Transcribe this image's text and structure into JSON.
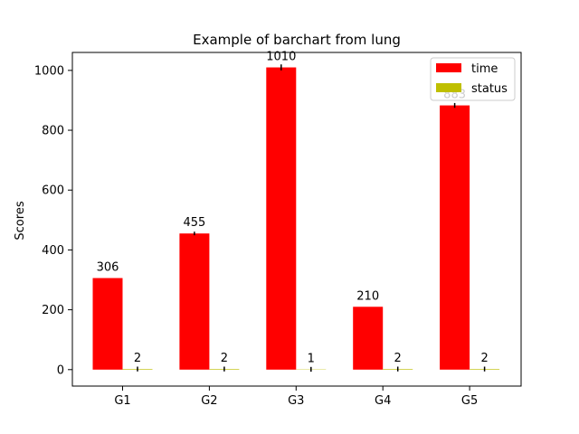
{
  "chart_data": {
    "type": "bar",
    "title": "Example of barchart from lung",
    "xlabel": "",
    "ylabel": "Scores",
    "categories": [
      "G1",
      "G2",
      "G3",
      "G4",
      "G5"
    ],
    "series": [
      {
        "name": "time",
        "values": [
          306,
          455,
          1010,
          210,
          883
        ],
        "errors": [
          0,
          6,
          10,
          0,
          8
        ],
        "labels": [
          "306",
          "455",
          "1010",
          "210",
          "883"
        ],
        "color": "#ff0000"
      },
      {
        "name": "status",
        "values": [
          2,
          2,
          1,
          2,
          2
        ],
        "errors": [
          8,
          8,
          8,
          8,
          8
        ],
        "labels": [
          "2",
          "2",
          "1",
          "2",
          "2"
        ],
        "color": "#bfbf00"
      }
    ],
    "ylim": [
      -55,
      1060
    ],
    "yticks": [
      0,
      200,
      400,
      600,
      800,
      1000
    ],
    "legend": "top-right",
    "grid": false
  }
}
